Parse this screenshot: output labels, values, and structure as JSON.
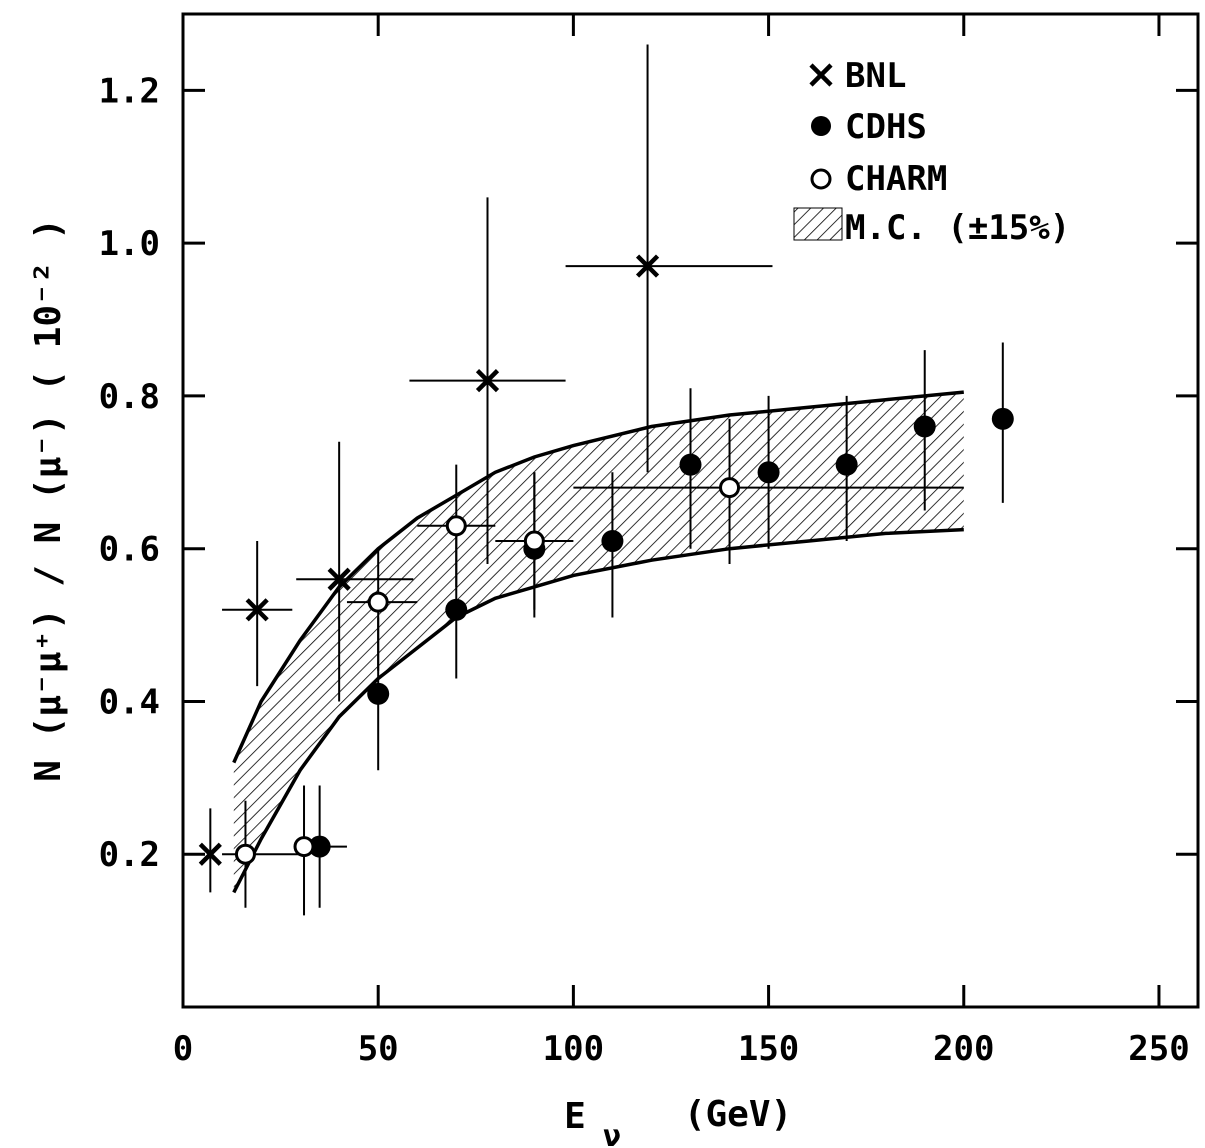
{
  "chart_data": {
    "type": "scatter",
    "title": "",
    "xlabel_main": "E",
    "xlabel_sub": "ν",
    "xlabel_unit": "(GeV)",
    "ylabel": "N (μ⁻μ⁺)  /  N (μ⁻)   ( 10⁻² )",
    "xlim": [
      0,
      260
    ],
    "ylim": [
      0,
      1.3
    ],
    "x_ticks": [
      0,
      50,
      100,
      150,
      200,
      250
    ],
    "x_tick_labels": [
      "0",
      "50",
      "100",
      "150",
      "200",
      "250"
    ],
    "y_ticks": [
      0.2,
      0.4,
      0.6,
      0.8,
      1.0,
      1.2
    ],
    "y_tick_labels": [
      "0.2",
      "0.4",
      "0.6",
      "0.8",
      "1.0",
      "1.2"
    ],
    "grid": false,
    "legend_position": "top-right",
    "legend": [
      {
        "label": "BNL",
        "marker": "cross"
      },
      {
        "label": "CDHS",
        "marker": "filled-circle"
      },
      {
        "label": "CHARM",
        "marker": "open-circle"
      },
      {
        "label": "M.C. (±15%)",
        "marker": "hatched-band"
      }
    ],
    "series": [
      {
        "name": "BNL",
        "marker": "cross",
        "points": [
          {
            "x": 7,
            "y": 0.2,
            "xlo": 7,
            "xhi": 7,
            "ylo": 0.15,
            "yhi": 0.26
          },
          {
            "x": 19,
            "y": 0.52,
            "xlo": 10,
            "xhi": 28,
            "ylo": 0.42,
            "yhi": 0.61
          },
          {
            "x": 40,
            "y": 0.56,
            "xlo": 29,
            "xhi": 59,
            "ylo": 0.4,
            "yhi": 0.74
          },
          {
            "x": 78,
            "y": 0.82,
            "xlo": 58,
            "xhi": 98,
            "ylo": 0.58,
            "yhi": 1.06
          },
          {
            "x": 119,
            "y": 0.97,
            "xlo": 98,
            "xhi": 151,
            "ylo": 0.7,
            "yhi": 1.26
          }
        ]
      },
      {
        "name": "CDHS",
        "marker": "filled-circle",
        "points": [
          {
            "x": 35,
            "y": 0.21,
            "xlo": 35,
            "xhi": 35,
            "ylo": 0.13,
            "yhi": 0.29
          },
          {
            "x": 50,
            "y": 0.41,
            "xlo": 50,
            "xhi": 50,
            "ylo": 0.31,
            "yhi": 0.51
          },
          {
            "x": 70,
            "y": 0.52,
            "xlo": 70,
            "xhi": 70,
            "ylo": 0.43,
            "yhi": 0.62
          },
          {
            "x": 90,
            "y": 0.6,
            "xlo": 90,
            "xhi": 90,
            "ylo": 0.51,
            "yhi": 0.7
          },
          {
            "x": 110,
            "y": 0.61,
            "xlo": 110,
            "xhi": 110,
            "ylo": 0.51,
            "yhi": 0.7
          },
          {
            "x": 130,
            "y": 0.71,
            "xlo": 130,
            "xhi": 130,
            "ylo": 0.6,
            "yhi": 0.81
          },
          {
            "x": 150,
            "y": 0.7,
            "xlo": 150,
            "xhi": 150,
            "ylo": 0.6,
            "yhi": 0.8
          },
          {
            "x": 170,
            "y": 0.71,
            "xlo": 170,
            "xhi": 170,
            "ylo": 0.61,
            "yhi": 0.8
          },
          {
            "x": 190,
            "y": 0.76,
            "xlo": 190,
            "xhi": 190,
            "ylo": 0.65,
            "yhi": 0.86
          },
          {
            "x": 210,
            "y": 0.77,
            "xlo": 210,
            "xhi": 210,
            "ylo": 0.66,
            "yhi": 0.87
          }
        ]
      },
      {
        "name": "CHARM",
        "marker": "open-circle",
        "points": [
          {
            "x": 16,
            "y": 0.2,
            "xlo": 10,
            "xhi": 30,
            "ylo": 0.13,
            "yhi": 0.27
          },
          {
            "x": 31,
            "y": 0.21,
            "xlo": 30,
            "xhi": 42,
            "ylo": 0.12,
            "yhi": 0.29
          },
          {
            "x": 50,
            "y": 0.53,
            "xlo": 42,
            "xhi": 60,
            "ylo": 0.44,
            "yhi": 0.6
          },
          {
            "x": 70,
            "y": 0.63,
            "xlo": 60,
            "xhi": 80,
            "ylo": 0.55,
            "yhi": 0.71
          },
          {
            "x": 90,
            "y": 0.61,
            "xlo": 80,
            "xhi": 100,
            "ylo": 0.52,
            "yhi": 0.7
          },
          {
            "x": 140,
            "y": 0.68,
            "xlo": 100,
            "xhi": 200,
            "ylo": 0.58,
            "yhi": 0.77
          }
        ]
      }
    ],
    "mc_band": {
      "name": "M.C. (±15%)",
      "x": [
        13,
        20,
        30,
        40,
        50,
        60,
        70,
        80,
        90,
        100,
        120,
        140,
        160,
        180,
        200
      ],
      "upper": [
        0.32,
        0.4,
        0.48,
        0.55,
        0.6,
        0.64,
        0.67,
        0.7,
        0.72,
        0.735,
        0.76,
        0.775,
        0.785,
        0.795,
        0.805
      ],
      "lower": [
        0.15,
        0.22,
        0.31,
        0.38,
        0.43,
        0.47,
        0.51,
        0.535,
        0.55,
        0.565,
        0.585,
        0.6,
        0.61,
        0.62,
        0.625
      ]
    }
  }
}
